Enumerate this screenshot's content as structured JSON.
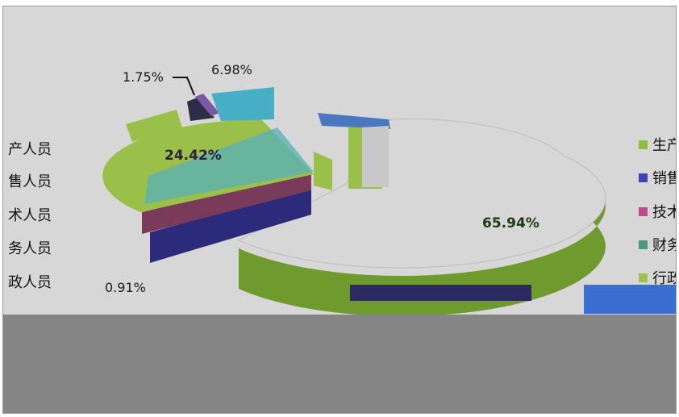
{
  "chart_data": {
    "type": "pie",
    "style": "exploded-3d",
    "title": "",
    "slices": [
      {
        "label": "生产人员",
        "value": 65.94,
        "text": "65.94%",
        "color": "#8bbf3c"
      },
      {
        "label": "销售人员",
        "value": 24.42,
        "text": "24.42%",
        "color": "#3f3d9e"
      },
      {
        "label": "技术人员",
        "value": 6.98,
        "text": "6.98%",
        "color": "#46aec5"
      },
      {
        "label": "财务人员",
        "value": 1.75,
        "text": "1.75%",
        "color": "#7a5aa5"
      },
      {
        "label": "行政人员",
        "value": 0.91,
        "text": "0.91%",
        "color": "#9ac34e"
      }
    ],
    "legend_placement": "right",
    "legend_left_fragments": [
      "产人员",
      "售人员",
      "术人员",
      "务人员",
      "政人员"
    ],
    "legend_right": [
      {
        "text": "生产",
        "color": "#8bbf3c"
      },
      {
        "text": "销售",
        "color": "#4040b8"
      },
      {
        "text": "技术",
        "color": "#c04b8a"
      },
      {
        "text": "财务",
        "color": "#4a9a82"
      },
      {
        "text": "行政",
        "color": "#9ac34e"
      }
    ]
  }
}
